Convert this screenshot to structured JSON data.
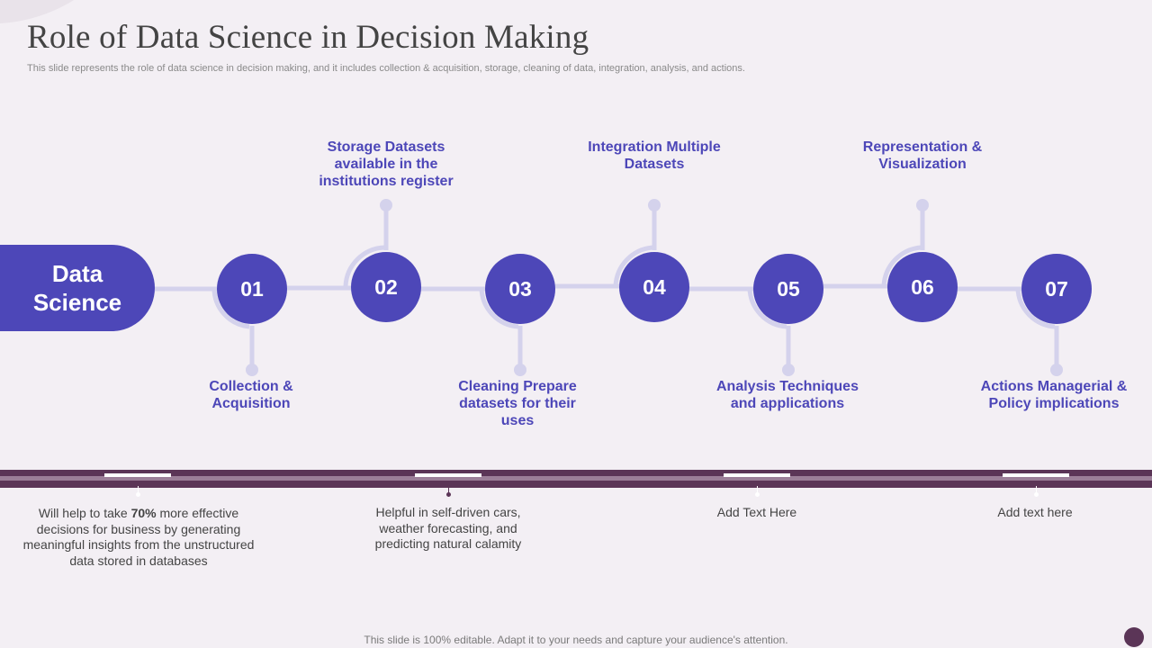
{
  "slide": {
    "title": "Role of Data Science in Decision Making",
    "subtitle": "This slide represents the role of data science in decision making, and it includes collection & acquisition, storage, cleaning of data, integration, analysis, and actions.",
    "hub_label": "Data Science",
    "footer": "This slide is 100% editable. Adapt it to your needs and capture your audience's attention."
  },
  "steps": [
    {
      "number": "01",
      "label": "Collection & Acquisition"
    },
    {
      "number": "02",
      "label": "Storage Datasets available in the institutions register"
    },
    {
      "number": "03",
      "label": "Cleaning Prepare datasets for their uses"
    },
    {
      "number": "04",
      "label": "Integration Multiple Datasets"
    },
    {
      "number": "05",
      "label": "Analysis Techniques and applications"
    },
    {
      "number": "06",
      "label": "Representation & Visualization"
    },
    {
      "number": "07",
      "label": "Actions Managerial & Policy implications"
    }
  ],
  "notes": [
    {
      "before": "Will help to take ",
      "bold": "70%",
      "after": " more effective decisions for business by generating meaningful insights from the unstructured data stored in databases"
    },
    {
      "text": "Helpful in self-driven cars, weather forecasting, and predicting natural calamity"
    },
    {
      "text": "Add Text Here"
    },
    {
      "text": "Add text here"
    }
  ],
  "colors": {
    "accent": "#4d47b8",
    "connector": "#d4d2ec",
    "band": "#5b3557",
    "background": "#f3eff4"
  }
}
